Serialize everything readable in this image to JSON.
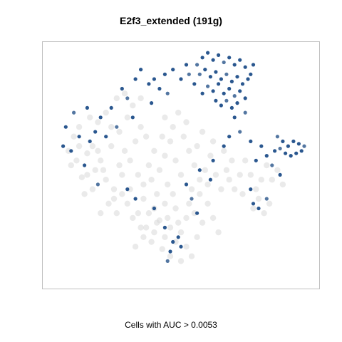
{
  "chart_data": {
    "type": "scatter",
    "title": "E2f3_extended (191g)",
    "xlabel": "",
    "ylabel": "",
    "caption": "Cells with AUC > 0.0053",
    "axes": "none",
    "grid": false,
    "legend": "none",
    "colors": {
      "background_cells": "#d9d9d9",
      "high_auc_cells": "#1f4e89",
      "mid_auc_cells": "#4a6f9c",
      "frame": "#bfbfbf"
    },
    "threshold_auc": 0.0053,
    "ylim": [
      0,
      1
    ],
    "xlim": [
      0,
      1
    ],
    "series": [
      {
        "group": "below_threshold",
        "points": [
          [
            0.1,
            0.62
          ],
          [
            0.12,
            0.58
          ],
          [
            0.15,
            0.55
          ],
          [
            0.09,
            0.5
          ],
          [
            0.13,
            0.45
          ],
          [
            0.18,
            0.48
          ],
          [
            0.2,
            0.52
          ],
          [
            0.22,
            0.44
          ],
          [
            0.25,
            0.4
          ],
          [
            0.28,
            0.46
          ],
          [
            0.17,
            0.4
          ],
          [
            0.14,
            0.38
          ],
          [
            0.24,
            0.58
          ],
          [
            0.27,
            0.64
          ],
          [
            0.3,
            0.7
          ],
          [
            0.32,
            0.75
          ],
          [
            0.26,
            0.78
          ],
          [
            0.22,
            0.72
          ],
          [
            0.19,
            0.68
          ],
          [
            0.16,
            0.7
          ],
          [
            0.12,
            0.66
          ],
          [
            0.29,
            0.56
          ],
          [
            0.33,
            0.6
          ],
          [
            0.35,
            0.66
          ],
          [
            0.31,
            0.52
          ],
          [
            0.34,
            0.46
          ],
          [
            0.36,
            0.42
          ],
          [
            0.38,
            0.5
          ],
          [
            0.4,
            0.56
          ],
          [
            0.42,
            0.48
          ],
          [
            0.44,
            0.54
          ],
          [
            0.46,
            0.6
          ],
          [
            0.48,
            0.52
          ],
          [
            0.5,
            0.46
          ],
          [
            0.45,
            0.42
          ],
          [
            0.41,
            0.38
          ],
          [
            0.47,
            0.66
          ],
          [
            0.49,
            0.72
          ],
          [
            0.44,
            0.7
          ],
          [
            0.51,
            0.62
          ],
          [
            0.53,
            0.56
          ],
          [
            0.55,
            0.5
          ],
          [
            0.57,
            0.44
          ],
          [
            0.54,
            0.4
          ],
          [
            0.59,
            0.48
          ],
          [
            0.61,
            0.54
          ],
          [
            0.63,
            0.46
          ],
          [
            0.65,
            0.4
          ],
          [
            0.67,
            0.48
          ],
          [
            0.62,
            0.6
          ],
          [
            0.58,
            0.64
          ],
          [
            0.66,
            0.56
          ],
          [
            0.69,
            0.52
          ],
          [
            0.72,
            0.46
          ],
          [
            0.7,
            0.4
          ],
          [
            0.74,
            0.52
          ],
          [
            0.76,
            0.46
          ],
          [
            0.78,
            0.4
          ],
          [
            0.8,
            0.44
          ],
          [
            0.82,
            0.5
          ],
          [
            0.84,
            0.44
          ],
          [
            0.79,
            0.36
          ],
          [
            0.83,
            0.34
          ],
          [
            0.81,
            0.3
          ],
          [
            0.77,
            0.32
          ],
          [
            0.3,
            0.34
          ],
          [
            0.32,
            0.28
          ],
          [
            0.35,
            0.24
          ],
          [
            0.38,
            0.3
          ],
          [
            0.4,
            0.22
          ],
          [
            0.42,
            0.27
          ],
          [
            0.44,
            0.2
          ],
          [
            0.46,
            0.24
          ],
          [
            0.48,
            0.18
          ],
          [
            0.5,
            0.22
          ],
          [
            0.52,
            0.16
          ],
          [
            0.54,
            0.12
          ],
          [
            0.5,
            0.1
          ],
          [
            0.46,
            0.12
          ],
          [
            0.43,
            0.15
          ],
          [
            0.39,
            0.18
          ],
          [
            0.36,
            0.2
          ],
          [
            0.33,
            0.16
          ],
          [
            0.56,
            0.2
          ],
          [
            0.58,
            0.26
          ],
          [
            0.55,
            0.3
          ],
          [
            0.52,
            0.28
          ],
          [
            0.48,
            0.32
          ],
          [
            0.44,
            0.34
          ],
          [
            0.4,
            0.32
          ],
          [
            0.36,
            0.36
          ],
          [
            0.6,
            0.34
          ],
          [
            0.62,
            0.28
          ],
          [
            0.64,
            0.22
          ],
          [
            0.23,
            0.34
          ],
          [
            0.2,
            0.3
          ],
          [
            0.26,
            0.3
          ],
          [
            0.17,
            0.58
          ],
          [
            0.08,
            0.56
          ],
          [
            0.11,
            0.52
          ],
          [
            0.29,
            0.8
          ],
          [
            0.35,
            0.78
          ],
          [
            0.24,
            0.66
          ],
          [
            0.37,
            0.62
          ],
          [
            0.43,
            0.62
          ],
          [
            0.52,
            0.68
          ],
          [
            0.56,
            0.58
          ],
          [
            0.6,
            0.42
          ],
          [
            0.68,
            0.44
          ],
          [
            0.73,
            0.38
          ],
          [
            0.86,
            0.48
          ],
          [
            0.88,
            0.42
          ],
          [
            0.21,
            0.48
          ],
          [
            0.15,
            0.46
          ],
          [
            0.19,
            0.56
          ],
          [
            0.27,
            0.5
          ],
          [
            0.39,
            0.44
          ],
          [
            0.47,
            0.38
          ],
          [
            0.53,
            0.34
          ],
          [
            0.57,
            0.38
          ],
          [
            0.49,
            0.26
          ],
          [
            0.45,
            0.28
          ],
          [
            0.41,
            0.26
          ],
          [
            0.37,
            0.24
          ],
          [
            0.34,
            0.3
          ],
          [
            0.31,
            0.4
          ],
          [
            0.28,
            0.38
          ],
          [
            0.25,
            0.36
          ]
        ]
      },
      {
        "group": "above_threshold",
        "points": [
          [
            0.56,
            0.92
          ],
          [
            0.58,
            0.95
          ],
          [
            0.6,
            0.97
          ],
          [
            0.62,
            0.94
          ],
          [
            0.64,
            0.96
          ],
          [
            0.66,
            0.93
          ],
          [
            0.68,
            0.95
          ],
          [
            0.7,
            0.92
          ],
          [
            0.72,
            0.94
          ],
          [
            0.74,
            0.91
          ],
          [
            0.57,
            0.88
          ],
          [
            0.59,
            0.9
          ],
          [
            0.61,
            0.87
          ],
          [
            0.63,
            0.89
          ],
          [
            0.65,
            0.86
          ],
          [
            0.67,
            0.88
          ],
          [
            0.69,
            0.85
          ],
          [
            0.71,
            0.87
          ],
          [
            0.73,
            0.84
          ],
          [
            0.75,
            0.86
          ],
          [
            0.6,
            0.83
          ],
          [
            0.62,
            0.81
          ],
          [
            0.64,
            0.84
          ],
          [
            0.66,
            0.8
          ],
          [
            0.68,
            0.82
          ],
          [
            0.7,
            0.79
          ],
          [
            0.72,
            0.81
          ],
          [
            0.74,
            0.78
          ],
          [
            0.63,
            0.77
          ],
          [
            0.65,
            0.75
          ],
          [
            0.67,
            0.77
          ],
          [
            0.69,
            0.74
          ],
          [
            0.71,
            0.76
          ],
          [
            0.58,
            0.8
          ],
          [
            0.55,
            0.84
          ],
          [
            0.53,
            0.88
          ],
          [
            0.52,
            0.92
          ],
          [
            0.76,
            0.88
          ],
          [
            0.77,
            0.92
          ],
          [
            0.5,
            0.86
          ],
          [
            0.86,
            0.62
          ],
          [
            0.88,
            0.6
          ],
          [
            0.9,
            0.58
          ],
          [
            0.92,
            0.6
          ],
          [
            0.94,
            0.59
          ],
          [
            0.96,
            0.58
          ],
          [
            0.89,
            0.55
          ],
          [
            0.91,
            0.54
          ],
          [
            0.93,
            0.55
          ],
          [
            0.95,
            0.56
          ],
          [
            0.87,
            0.57
          ],
          [
            0.85,
            0.56
          ],
          [
            0.47,
            0.9
          ],
          [
            0.44,
            0.88
          ],
          [
            0.42,
            0.82
          ],
          [
            0.45,
            0.8
          ],
          [
            0.4,
            0.86
          ],
          [
            0.38,
            0.84
          ],
          [
            0.35,
            0.9
          ],
          [
            0.33,
            0.86
          ],
          [
            0.3,
            0.78
          ],
          [
            0.28,
            0.82
          ],
          [
            0.24,
            0.74
          ],
          [
            0.2,
            0.7
          ],
          [
            0.15,
            0.74
          ],
          [
            0.1,
            0.72
          ],
          [
            0.07,
            0.66
          ],
          [
            0.12,
            0.62
          ],
          [
            0.18,
            0.64
          ],
          [
            0.22,
            0.62
          ],
          [
            0.26,
            0.66
          ],
          [
            0.09,
            0.56
          ],
          [
            0.06,
            0.58
          ],
          [
            0.16,
            0.6
          ],
          [
            0.14,
            0.5
          ],
          [
            0.19,
            0.42
          ],
          [
            0.3,
            0.4
          ],
          [
            0.33,
            0.36
          ],
          [
            0.4,
            0.32
          ],
          [
            0.52,
            0.42
          ],
          [
            0.54,
            0.36
          ],
          [
            0.57,
            0.48
          ],
          [
            0.62,
            0.52
          ],
          [
            0.66,
            0.58
          ],
          [
            0.68,
            0.62
          ],
          [
            0.72,
            0.64
          ],
          [
            0.76,
            0.6
          ],
          [
            0.78,
            0.52
          ],
          [
            0.8,
            0.58
          ],
          [
            0.82,
            0.54
          ],
          [
            0.84,
            0.5
          ],
          [
            0.87,
            0.46
          ],
          [
            0.76,
            0.4
          ],
          [
            0.77,
            0.34
          ],
          [
            0.79,
            0.32
          ],
          [
            0.82,
            0.36
          ],
          [
            0.47,
            0.18
          ],
          [
            0.49,
            0.2
          ],
          [
            0.5,
            0.16
          ],
          [
            0.46,
            0.14
          ],
          [
            0.45,
            0.1
          ],
          [
            0.44,
            0.24
          ],
          [
            0.56,
            0.3
          ],
          [
            0.61,
            0.44
          ],
          [
            0.7,
            0.7
          ],
          [
            0.74,
            0.72
          ],
          [
            0.39,
            0.76
          ],
          [
            0.32,
            0.7
          ]
        ]
      }
    ]
  }
}
